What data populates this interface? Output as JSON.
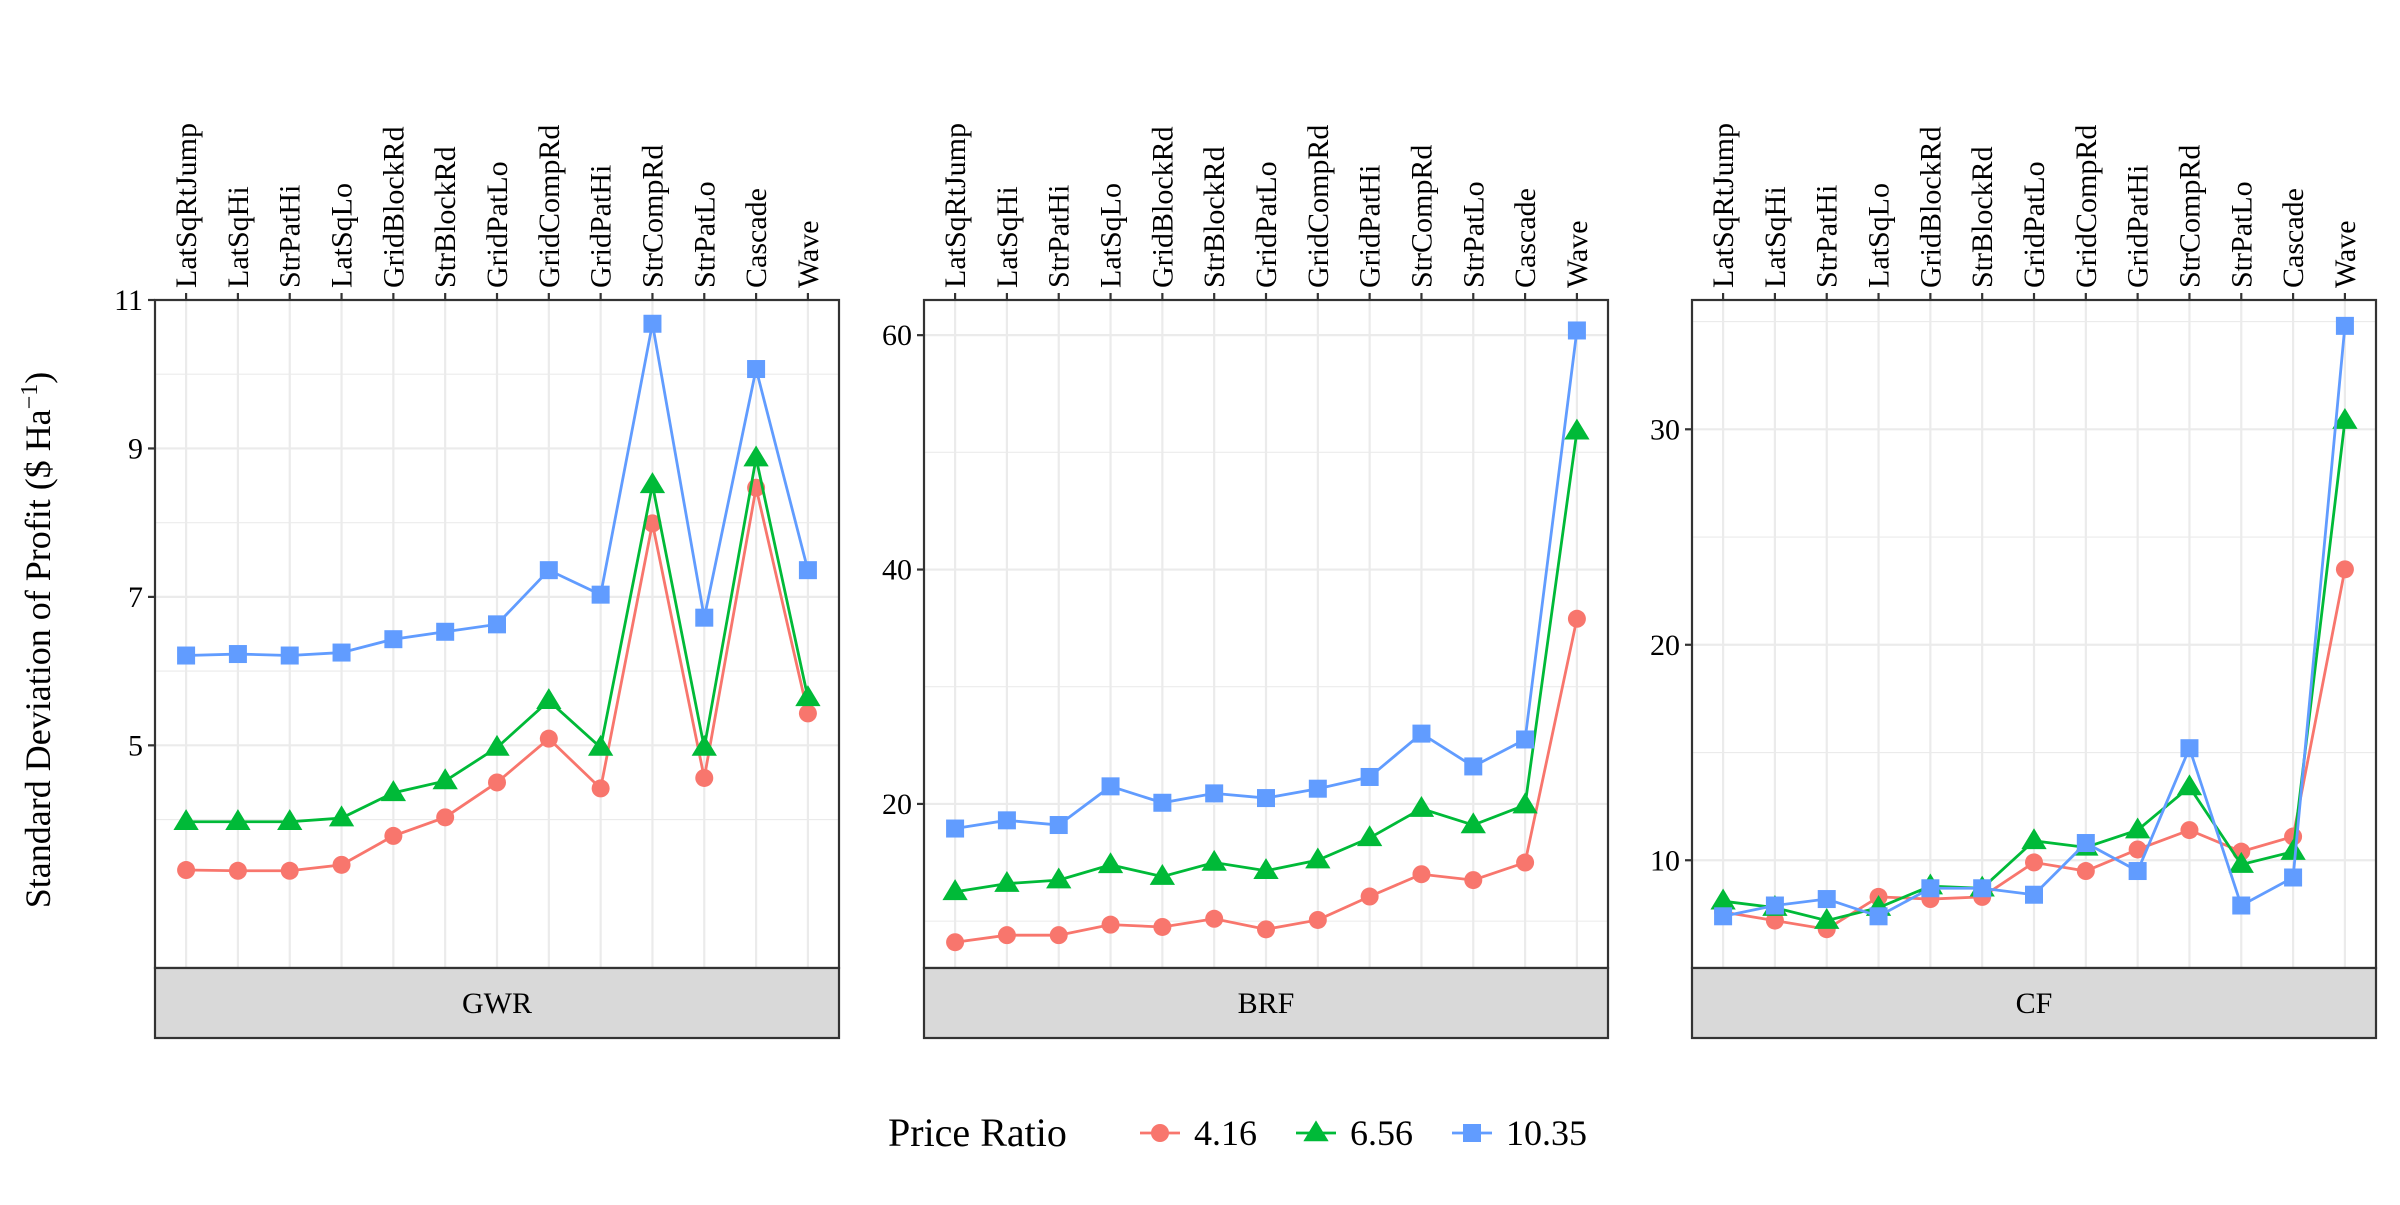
{
  "chart_data": {
    "type": "line",
    "ylabel": "Standard Deviation of Profit ($ Ha",
    "ylabel_superscript": "−1",
    "ylabel_close": ")",
    "categories": [
      "LatSqRtJump",
      "LatSqHi",
      "StrPatHi",
      "LatSqLo",
      "GridBlockRd",
      "StrBlockRd",
      "GridPatLo",
      "GridCompRd",
      "GridPatHi",
      "StrCompRd",
      "StrPatLo",
      "Cascade",
      "Wave"
    ],
    "legend": {
      "title": "Price Ratio",
      "position": "bottom",
      "entries": [
        "4.16",
        "6.56",
        "10.35"
      ]
    },
    "series_colors": [
      "#F8766D",
      "#00BA38",
      "#619CFF"
    ],
    "series_markers": [
      "circle",
      "triangle",
      "square"
    ],
    "grid": true,
    "panels": [
      {
        "strip": "GWR",
        "ylim": [
          2.0,
          11.0
        ],
        "yticks": [
          5,
          7,
          9,
          11
        ],
        "series": [
          {
            "name": "4.16",
            "values": [
              3.32,
              3.31,
              3.31,
              3.39,
              3.78,
              4.03,
              4.5,
              5.09,
              4.42,
              7.99,
              4.56,
              8.47,
              5.43
            ]
          },
          {
            "name": "6.56",
            "values": [
              3.97,
              3.97,
              3.97,
              4.02,
              4.36,
              4.52,
              4.97,
              5.6,
              4.97,
              8.51,
              4.97,
              8.87,
              5.64
            ]
          },
          {
            "name": "10.35",
            "values": [
              6.21,
              6.23,
              6.21,
              6.25,
              6.43,
              6.53,
              6.63,
              7.36,
              7.03,
              10.68,
              6.72,
              10.07,
              7.36
            ]
          }
        ]
      },
      {
        "strip": "BRF",
        "ylim": [
          6.0,
          63.0
        ],
        "yticks": [
          20,
          40,
          60
        ],
        "series": [
          {
            "name": "4.16",
            "values": [
              8.2,
              8.8,
              8.8,
              9.7,
              9.5,
              10.2,
              9.3,
              10.1,
              12.1,
              14.0,
              13.5,
              15.0,
              35.8
            ]
          },
          {
            "name": "6.56",
            "values": [
              12.5,
              13.2,
              13.5,
              14.8,
              13.8,
              15.0,
              14.3,
              15.2,
              17.1,
              19.6,
              18.2,
              19.9,
              51.8
            ]
          },
          {
            "name": "10.35",
            "values": [
              17.9,
              18.6,
              18.2,
              21.5,
              20.1,
              20.9,
              20.5,
              21.3,
              22.3,
              26.0,
              23.2,
              25.5,
              60.4
            ]
          }
        ]
      },
      {
        "strip": "CF",
        "ylim": [
          5.0,
          36.0
        ],
        "yticks": [
          10,
          20,
          30
        ],
        "series": [
          {
            "name": "4.16",
            "values": [
              7.6,
              7.2,
              6.8,
              8.3,
              8.2,
              8.3,
              9.9,
              9.5,
              10.5,
              11.4,
              10.4,
              11.1,
              23.5
            ]
          },
          {
            "name": "6.56",
            "values": [
              8.1,
              7.8,
              7.2,
              7.8,
              8.8,
              8.7,
              10.9,
              10.6,
              11.4,
              13.4,
              9.8,
              10.4,
              30.4
            ]
          },
          {
            "name": "10.35",
            "values": [
              7.4,
              7.9,
              8.2,
              7.4,
              8.7,
              8.7,
              8.4,
              10.8,
              9.5,
              15.2,
              7.9,
              9.2,
              34.8
            ]
          }
        ]
      }
    ]
  }
}
